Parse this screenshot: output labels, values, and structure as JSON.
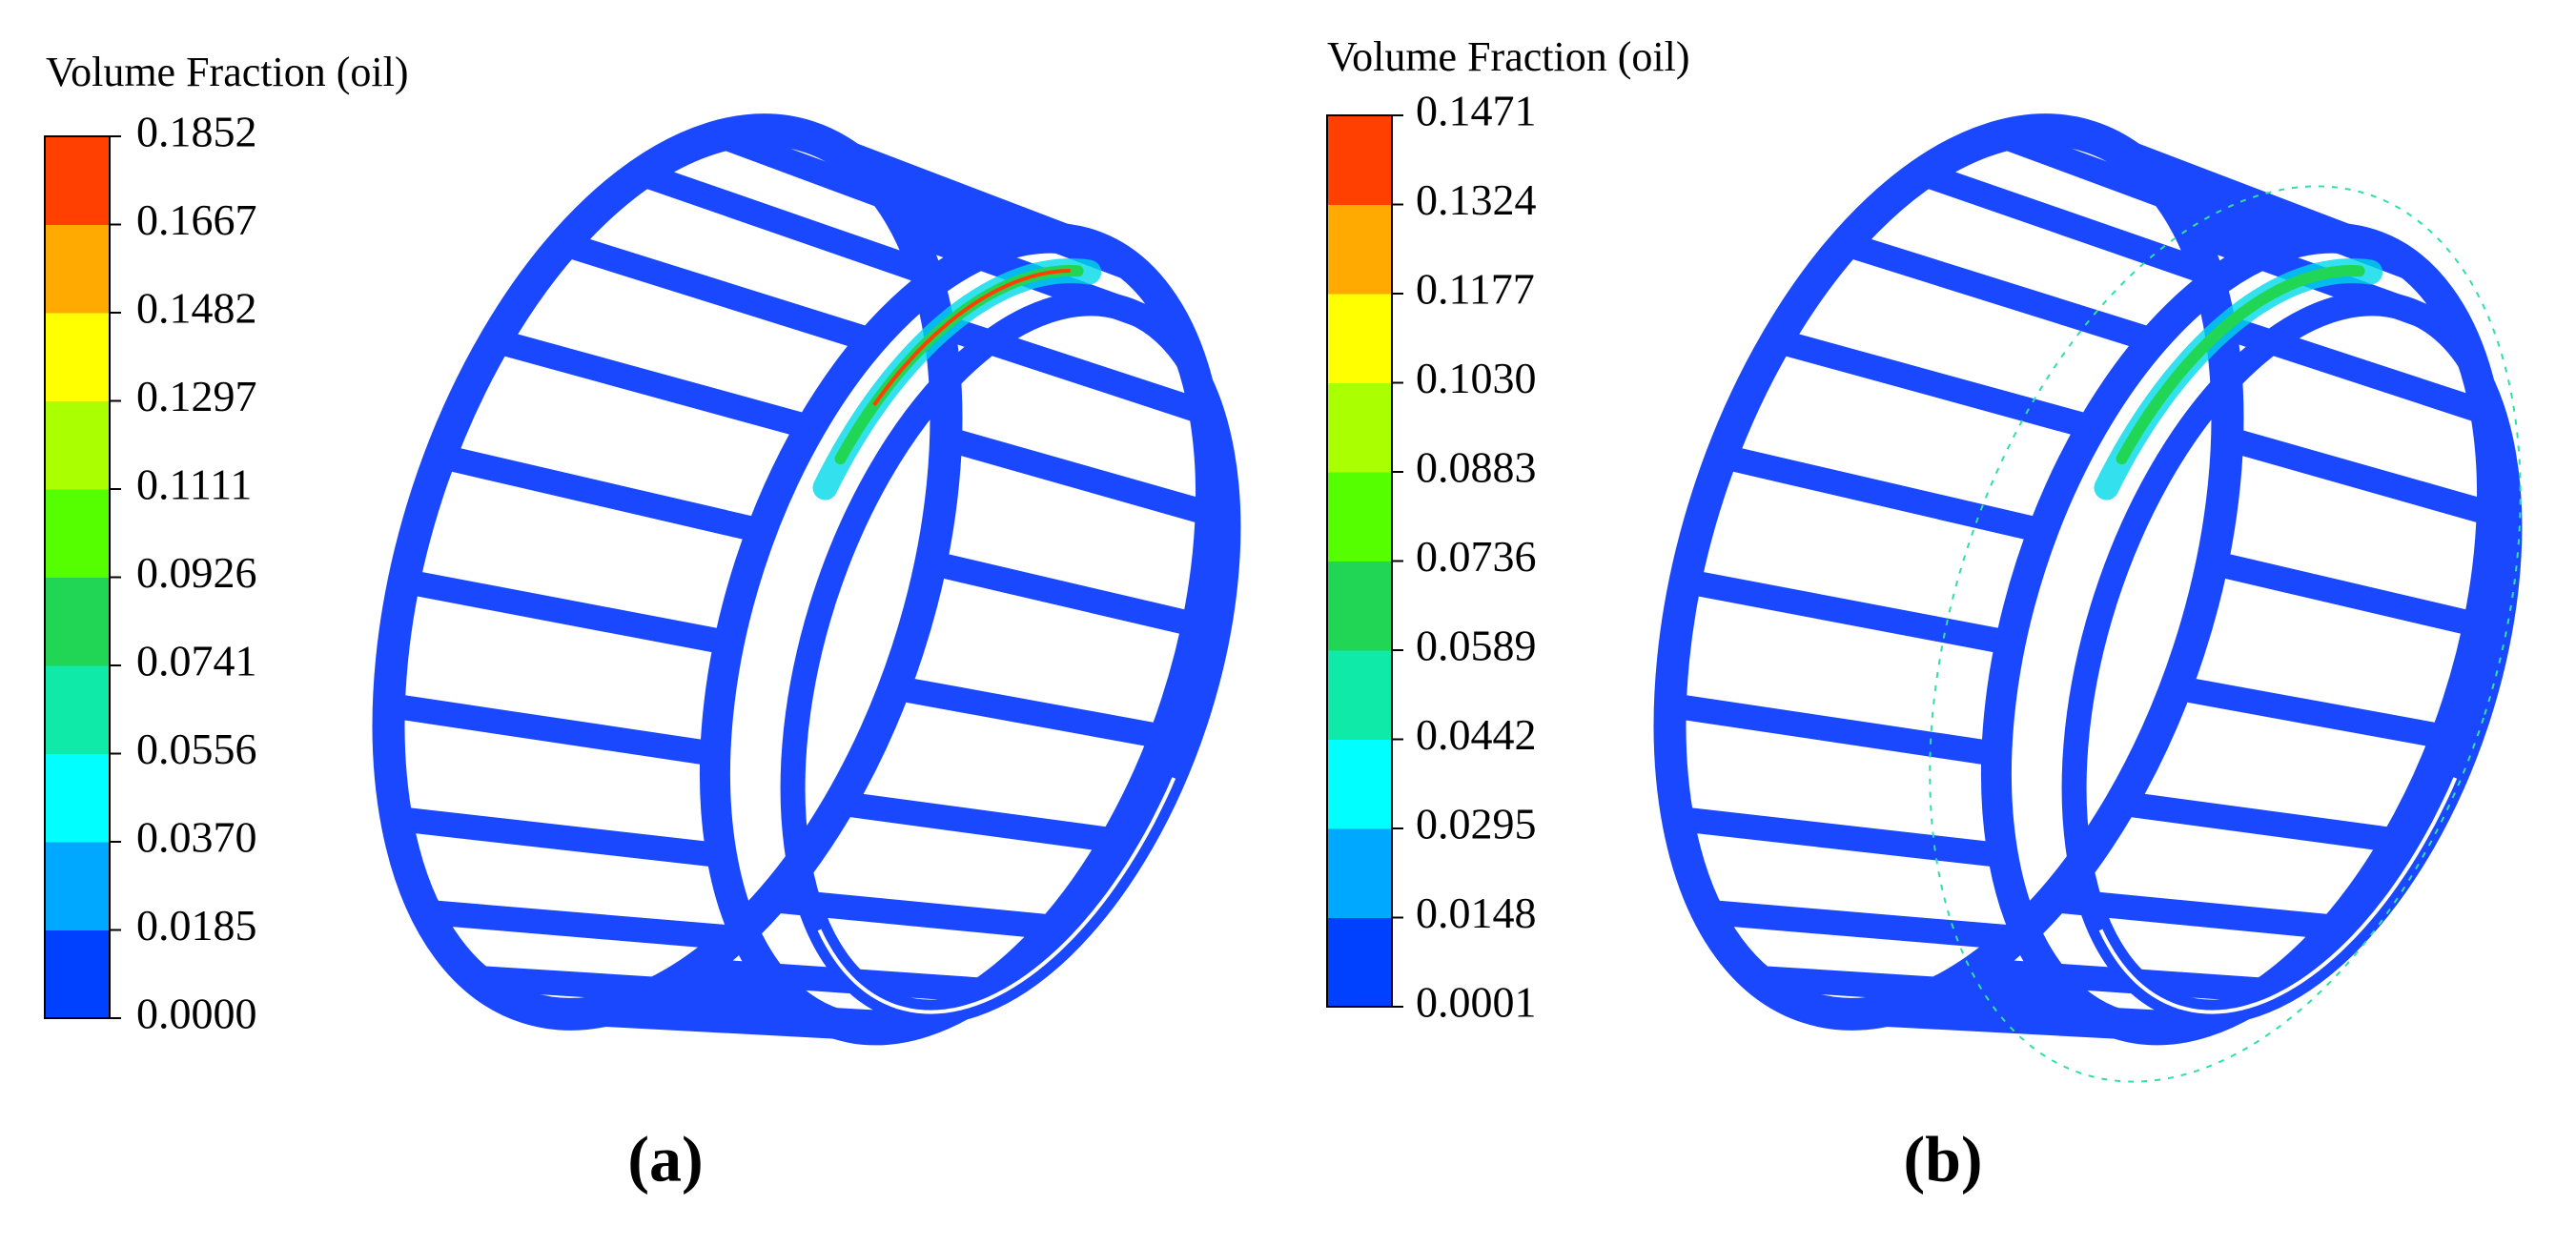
{
  "panels": [
    {
      "label": "(a)",
      "colorbar": {
        "title": "Volume Fraction (oil)",
        "ticks": [
          "0.0000",
          "0.0185",
          "0.0370",
          "0.0556",
          "0.0741",
          "0.0926",
          "0.1111",
          "0.1297",
          "0.1482",
          "0.1667",
          "0.1852"
        ],
        "colors": [
          "#0040ff",
          "#00a8ff",
          "#00ffff",
          "#10eaa8",
          "#22d655",
          "#55ff00",
          "#aaff00",
          "#ffff00",
          "#ffaa00",
          "#ff4000"
        ]
      }
    },
    {
      "label": "(b)",
      "colorbar": {
        "title": "Volume Fraction (oil)",
        "ticks": [
          "0.0001",
          "0.0148",
          "0.0295",
          "0.0442",
          "0.0589",
          "0.0736",
          "0.0883",
          "0.1030",
          "0.1177",
          "0.1324",
          "0.1471"
        ],
        "colors": [
          "#0040ff",
          "#00a8ff",
          "#00ffff",
          "#10eaa8",
          "#22d655",
          "#55ff00",
          "#aaff00",
          "#ffff00",
          "#ffaa00",
          "#ff4000"
        ]
      }
    }
  ]
}
